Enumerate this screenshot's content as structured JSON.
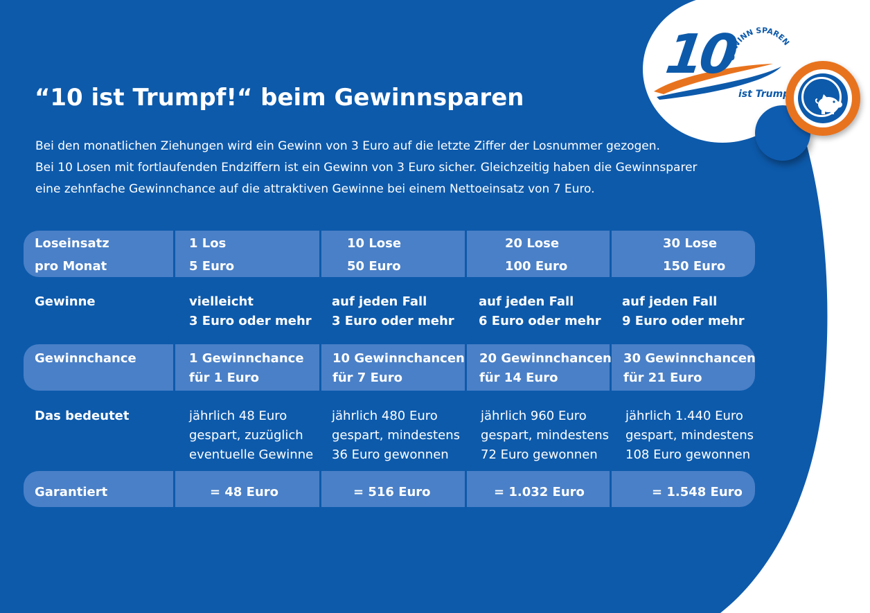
{
  "logo": {
    "number": "10",
    "arc_text": "GEWINN SPAREN",
    "tagline": "ist Trumpf!",
    "icon": "piggy-bank-icon"
  },
  "colors": {
    "background": "#0d5aab",
    "band": "#4a80c7",
    "accent_orange": "#e8731e",
    "text": "#ffffff"
  },
  "title": "“10 ist Trumpf!“ beim Gewinnsparen",
  "intro": [
    "Bei den monatlichen Ziehungen wird ein Gewinn von 3 Euro auf die letzte Ziffer der Losnummer gezogen.",
    "Bei 10 Losen mit fortlaufenden Endziffern ist ein Gewinn von 3 Euro sicher. Gleichzeitig haben die Gewinnsparer",
    "eine zehnfache Gewinnchance auf die attraktiven Gewinne bei einem Nettoeinsatz von 7 Euro."
  ],
  "table": {
    "rows": [
      {
        "label": [
          "Loseinsatz",
          "pro Monat"
        ],
        "cells": [
          [
            "1 Los",
            "5 Euro"
          ],
          [
            "10 Lose",
            "50 Euro"
          ],
          [
            "20 Lose",
            "100 Euro"
          ],
          [
            "30 Lose",
            "150 Euro"
          ]
        ]
      },
      {
        "label": [
          "Gewinne"
        ],
        "cells": [
          [
            "vielleicht",
            "3 Euro oder mehr"
          ],
          [
            "auf jeden Fall",
            "3 Euro oder mehr"
          ],
          [
            "auf jeden Fall",
            "6 Euro oder mehr"
          ],
          [
            "auf jeden Fall",
            "9 Euro oder mehr"
          ]
        ]
      },
      {
        "label": [
          "Gewinnchance"
        ],
        "cells": [
          [
            "1 Gewinnchance",
            "für 1 Euro"
          ],
          [
            "10 Gewinnchancen",
            "für 7 Euro"
          ],
          [
            "20 Gewinnchancen",
            "für 14 Euro"
          ],
          [
            "30 Gewinnchancen",
            "für 21 Euro"
          ]
        ]
      },
      {
        "label": [
          "Das bedeutet"
        ],
        "cells": [
          [
            "jährlich 48 Euro",
            "gespart, zuzüglich",
            "eventuelle Gewinne"
          ],
          [
            "jährlich 480 Euro",
            "gespart, mindestens",
            "36 Euro gewonnen"
          ],
          [
            "jährlich 960 Euro",
            "gespart, mindestens",
            "72 Euro gewonnen"
          ],
          [
            "jährlich 1.440 Euro",
            "gespart, mindestens",
            "108 Euro gewonnen"
          ]
        ]
      },
      {
        "label": [
          "Garantiert"
        ],
        "cells": [
          [
            "= 48 Euro"
          ],
          [
            "= 516 Euro"
          ],
          [
            "= 1.032 Euro"
          ],
          [
            "= 1.548 Euro"
          ]
        ]
      }
    ]
  }
}
